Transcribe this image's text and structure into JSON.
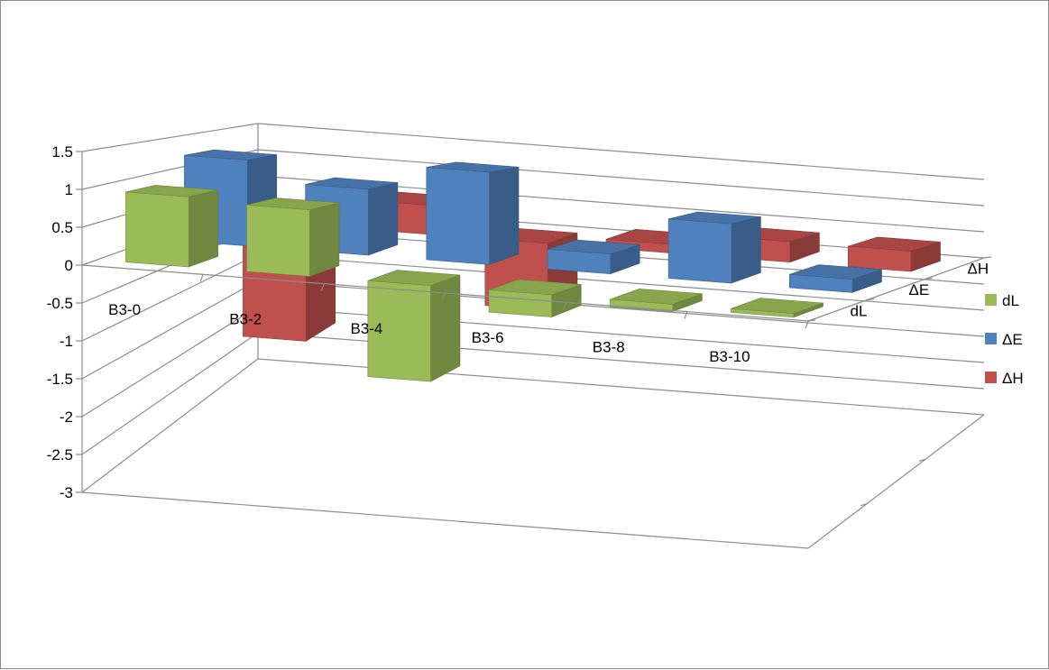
{
  "chart_data": {
    "type": "bar3d",
    "title": "",
    "categories": [
      "B3-0",
      "B3-2",
      "B3-4",
      "B3-6",
      "B3-8",
      "B3-10"
    ],
    "depth_categories": [
      "dL",
      "ΔE",
      "ΔH"
    ],
    "series": [
      {
        "name": "dL",
        "color": "#9bbb59",
        "values": [
          0.95,
          0.9,
          -1.3,
          -0.3,
          -0.1,
          -0.05
        ]
      },
      {
        "name": "ΔE",
        "color": "#4f81bd",
        "values": [
          1.3,
          1.0,
          1.4,
          0.3,
          0.9,
          0.2
        ]
      },
      {
        "name": "ΔH",
        "color": "#c0504d",
        "values": [
          -2.0,
          0.5,
          -1.15,
          0.15,
          0.35,
          0.35
        ]
      }
    ],
    "yticks": [
      "1.5",
      "1",
      "0.5",
      "0",
      "-0.5",
      "-1",
      "-1.5",
      "-2",
      "-2.5",
      "-3"
    ],
    "ylim": [
      -3,
      1.5
    ],
    "legend_position": "right",
    "grid": true
  }
}
